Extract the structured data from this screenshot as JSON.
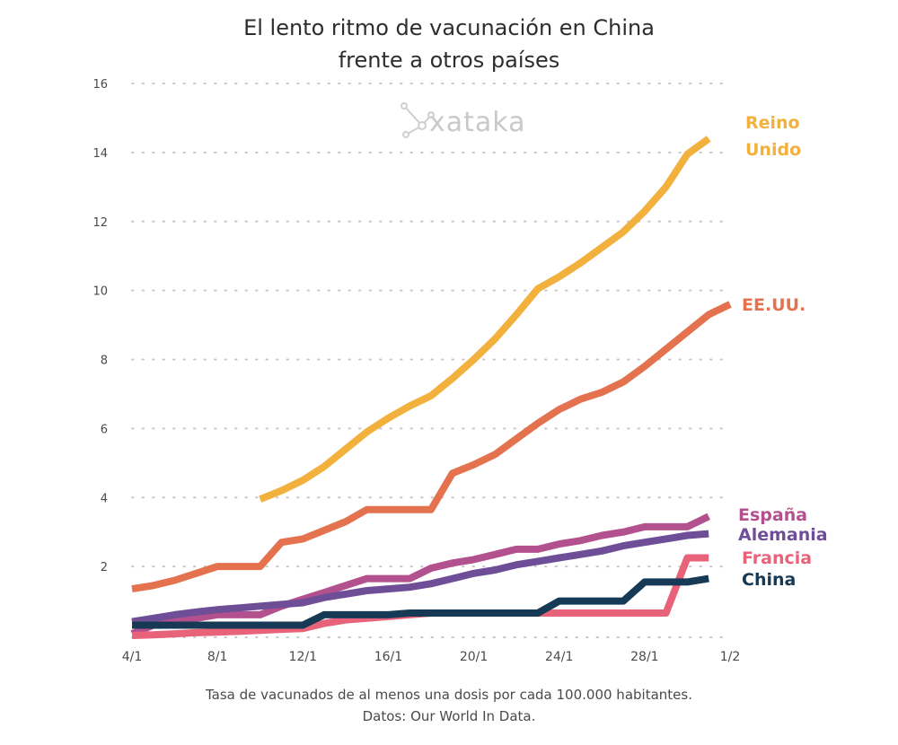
{
  "title_line1": "El lento ritmo de vacunación en China",
  "title_line2": "frente a otros países",
  "caption_line1": "Tasa de vacunados de al menos una dosis por cada 100.000 habitantes.",
  "caption_line2": "Datos: Our World In Data.",
  "watermark": "xataka",
  "chart_data": {
    "type": "line",
    "title": "El lento ritmo de vacunación en China frente a otros países",
    "xlabel": "",
    "ylabel": "",
    "x_tick_labels": [
      "4/1",
      "8/1",
      "12/1",
      "16/1",
      "20/1",
      "24/1",
      "28/1",
      "1/2"
    ],
    "y_ticks": [
      2,
      4,
      6,
      8,
      10,
      12,
      14,
      16
    ],
    "ylim": [
      0,
      16
    ],
    "x_domain_days": [
      4,
      32
    ],
    "grid": "horizontal dotted",
    "legend": "labels at line ends (right)",
    "series": [
      {
        "name": "Reino Unido",
        "label_lines": [
          "Reino",
          "Unido"
        ],
        "color": "#F2B03D",
        "points": [
          [
            10,
            3.95
          ],
          [
            11,
            4.2
          ],
          [
            12,
            4.5
          ],
          [
            13,
            4.9
          ],
          [
            14,
            5.4
          ],
          [
            15,
            5.9
          ],
          [
            16,
            6.3
          ],
          [
            17,
            6.65
          ],
          [
            18,
            6.95
          ],
          [
            19,
            7.45
          ],
          [
            20,
            8.0
          ],
          [
            21,
            8.6
          ],
          [
            22,
            9.3
          ],
          [
            23,
            10.05
          ],
          [
            24,
            10.4
          ],
          [
            25,
            10.8
          ],
          [
            26,
            11.25
          ],
          [
            27,
            11.7
          ],
          [
            28,
            12.3
          ],
          [
            29,
            13.0
          ],
          [
            30,
            13.95
          ],
          [
            31,
            14.4
          ]
        ]
      },
      {
        "name": "EE.UU.",
        "label_lines": [
          "EE.UU."
        ],
        "color": "#E4724F",
        "points": [
          [
            4,
            1.35
          ],
          [
            5,
            1.45
          ],
          [
            6,
            1.6
          ],
          [
            7,
            1.8
          ],
          [
            8,
            2.0
          ],
          [
            9,
            2.0
          ],
          [
            10,
            2.0
          ],
          [
            11,
            2.7
          ],
          [
            12,
            2.8
          ],
          [
            13,
            3.05
          ],
          [
            14,
            3.3
          ],
          [
            15,
            3.65
          ],
          [
            16,
            3.65
          ],
          [
            17,
            3.65
          ],
          [
            18,
            3.65
          ],
          [
            19,
            4.7
          ],
          [
            20,
            4.95
          ],
          [
            21,
            5.25
          ],
          [
            22,
            5.7
          ],
          [
            23,
            6.15
          ],
          [
            24,
            6.55
          ],
          [
            25,
            6.85
          ],
          [
            26,
            7.05
          ],
          [
            27,
            7.35
          ],
          [
            28,
            7.8
          ],
          [
            29,
            8.3
          ],
          [
            30,
            8.8
          ],
          [
            31,
            9.3
          ],
          [
            32,
            9.6
          ]
        ]
      },
      {
        "name": "España",
        "label_lines": [
          "España"
        ],
        "color": "#B3508E",
        "points": [
          [
            4,
            0.05
          ],
          [
            5,
            0.3
          ],
          [
            6,
            0.4
          ],
          [
            7,
            0.5
          ],
          [
            8,
            0.6
          ],
          [
            9,
            0.6
          ],
          [
            10,
            0.6
          ],
          [
            11,
            0.85
          ],
          [
            12,
            1.05
          ],
          [
            13,
            1.25
          ],
          [
            14,
            1.45
          ],
          [
            15,
            1.65
          ],
          [
            16,
            1.65
          ],
          [
            17,
            1.65
          ],
          [
            18,
            1.95
          ],
          [
            19,
            2.1
          ],
          [
            20,
            2.2
          ],
          [
            21,
            2.35
          ],
          [
            22,
            2.5
          ],
          [
            23,
            2.5
          ],
          [
            24,
            2.65
          ],
          [
            25,
            2.75
          ],
          [
            26,
            2.9
          ],
          [
            27,
            3.0
          ],
          [
            28,
            3.15
          ],
          [
            29,
            3.15
          ],
          [
            30,
            3.15
          ],
          [
            31,
            3.45
          ]
        ]
      },
      {
        "name": "Alemania",
        "label_lines": [
          "Alemania"
        ],
        "color": "#6E4E96",
        "points": [
          [
            4,
            0.4
          ],
          [
            5,
            0.5
          ],
          [
            6,
            0.6
          ],
          [
            7,
            0.68
          ],
          [
            8,
            0.75
          ],
          [
            9,
            0.8
          ],
          [
            10,
            0.85
          ],
          [
            11,
            0.9
          ],
          [
            12,
            0.95
          ],
          [
            13,
            1.1
          ],
          [
            14,
            1.2
          ],
          [
            15,
            1.3
          ],
          [
            16,
            1.35
          ],
          [
            17,
            1.4
          ],
          [
            18,
            1.5
          ],
          [
            19,
            1.65
          ],
          [
            20,
            1.8
          ],
          [
            21,
            1.9
          ],
          [
            22,
            2.05
          ],
          [
            23,
            2.15
          ],
          [
            24,
            2.25
          ],
          [
            25,
            2.35
          ],
          [
            26,
            2.45
          ],
          [
            27,
            2.6
          ],
          [
            28,
            2.7
          ],
          [
            29,
            2.8
          ],
          [
            30,
            2.9
          ],
          [
            31,
            2.95
          ]
        ]
      },
      {
        "name": "Francia",
        "label_lines": [
          "Francia"
        ],
        "color": "#E8627A",
        "points": [
          [
            4,
            0.0
          ],
          [
            5,
            0.02
          ],
          [
            6,
            0.05
          ],
          [
            7,
            0.08
          ],
          [
            8,
            0.1
          ],
          [
            9,
            0.12
          ],
          [
            10,
            0.15
          ],
          [
            11,
            0.18
          ],
          [
            12,
            0.2
          ],
          [
            13,
            0.35
          ],
          [
            14,
            0.45
          ],
          [
            15,
            0.5
          ],
          [
            16,
            0.55
          ],
          [
            17,
            0.6
          ],
          [
            18,
            0.65
          ],
          [
            19,
            0.65
          ],
          [
            20,
            0.65
          ],
          [
            21,
            0.65
          ],
          [
            22,
            0.65
          ],
          [
            23,
            0.65
          ],
          [
            24,
            0.65
          ],
          [
            25,
            0.65
          ],
          [
            26,
            0.65
          ],
          [
            27,
            0.65
          ],
          [
            28,
            0.65
          ],
          [
            29,
            0.65
          ],
          [
            30,
            2.25
          ],
          [
            31,
            2.25
          ]
        ]
      },
      {
        "name": "China",
        "label_lines": [
          "China"
        ],
        "color": "#163A55",
        "points": [
          [
            4,
            0.3
          ],
          [
            5,
            0.3
          ],
          [
            6,
            0.3
          ],
          [
            7,
            0.3
          ],
          [
            8,
            0.3
          ],
          [
            9,
            0.3
          ],
          [
            10,
            0.3
          ],
          [
            11,
            0.3
          ],
          [
            12,
            0.3
          ],
          [
            13,
            0.6
          ],
          [
            14,
            0.6
          ],
          [
            15,
            0.6
          ],
          [
            16,
            0.6
          ],
          [
            17,
            0.65
          ],
          [
            18,
            0.65
          ],
          [
            19,
            0.65
          ],
          [
            20,
            0.65
          ],
          [
            21,
            0.65
          ],
          [
            22,
            0.65
          ],
          [
            23,
            0.65
          ],
          [
            24,
            1.0
          ],
          [
            25,
            1.0
          ],
          [
            26,
            1.0
          ],
          [
            27,
            1.0
          ],
          [
            28,
            1.55
          ],
          [
            29,
            1.55
          ],
          [
            30,
            1.55
          ],
          [
            31,
            1.65
          ]
        ]
      }
    ]
  }
}
